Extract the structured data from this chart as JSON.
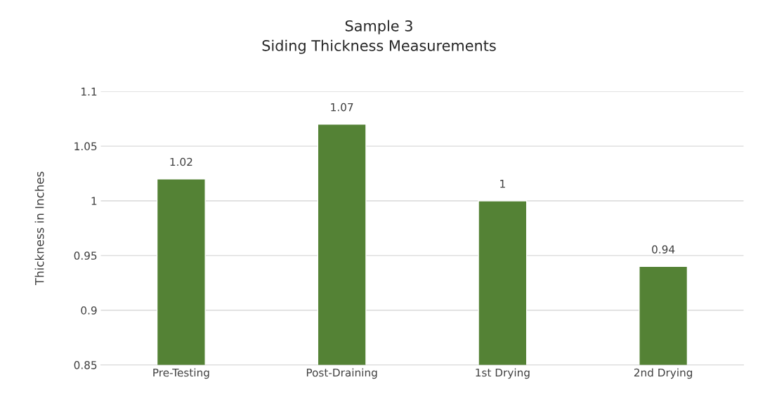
{
  "chart_data": {
    "type": "bar",
    "title": "Sample 3\nSiding Thickness Measurements",
    "ylabel": "Thickness in Inches",
    "categories": [
      "Pre-Testing",
      "Post-Draining",
      "1st Drying",
      "2nd Drying"
    ],
    "values": [
      1.02,
      1.07,
      1,
      0.94
    ],
    "color": "#548235",
    "ylim": [
      0.85,
      1.1
    ],
    "yticks": [
      0.85,
      0.9,
      0.95,
      1,
      1.05,
      1.1
    ],
    "grid": "y",
    "data_labels": true
  }
}
